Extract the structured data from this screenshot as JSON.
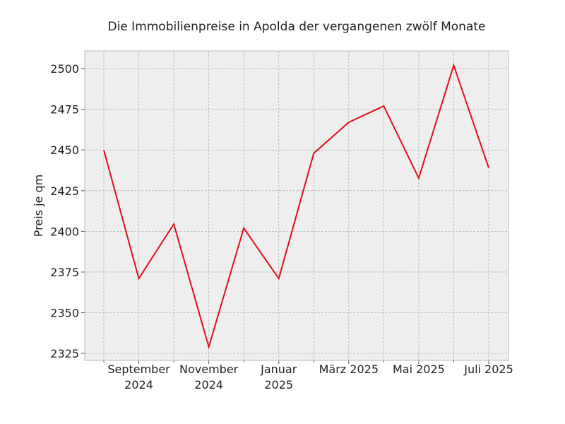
{
  "chart_data": {
    "type": "line",
    "title": "Die Immobilienpreise in Apolda der vergangenen zwölf Monate",
    "ylabel": "Preis je qm",
    "categories": [
      null,
      "September 2024",
      null,
      "November 2024",
      null,
      "Januar 2025",
      null,
      "März 2025",
      null,
      "Mai 2025",
      null,
      "Juli 2025"
    ],
    "series": [
      {
        "name": "Preis",
        "color": "#e0101e",
        "values": [
          2450,
          2371,
          2404.5,
          2329,
          2402,
          2371,
          2448,
          2467,
          2477,
          2432.7,
          2502,
          2439
        ]
      }
    ],
    "ylim": [
      2320.7,
      2510.9
    ],
    "yticks": [
      2325,
      2350,
      2375,
      2400,
      2425,
      2450,
      2475,
      2500
    ],
    "grid": true
  }
}
